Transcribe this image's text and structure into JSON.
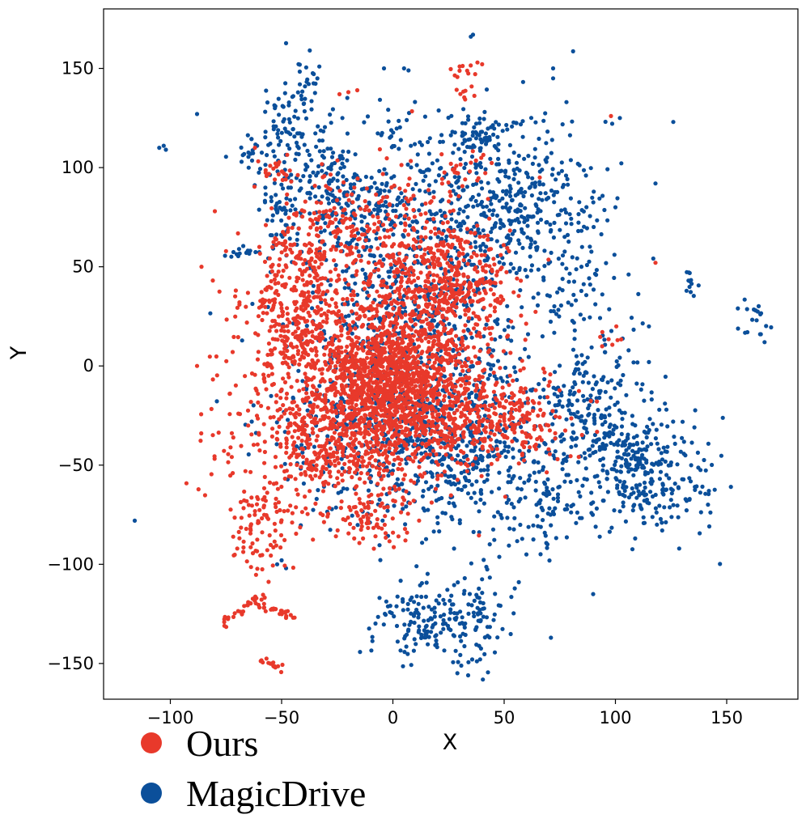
{
  "colors": {
    "ours": "#e8392b",
    "magicdrive": "#0b4f9a",
    "axis": "#000000"
  },
  "legend": {
    "items": [
      {
        "label": "Ours",
        "color": "#e8392b"
      },
      {
        "label": "MagicDrive",
        "color": "#0b4f9a"
      }
    ]
  },
  "chart_data": {
    "type": "scatter",
    "title": "",
    "xlabel": "X",
    "ylabel": "Y",
    "xlim": [
      -130,
      182
    ],
    "ylim": [
      -168,
      180
    ],
    "xticks": [
      -100,
      -50,
      0,
      50,
      100,
      150
    ],
    "yticks": [
      -150,
      -100,
      -50,
      0,
      50,
      100,
      150
    ],
    "xtick_labels": [
      "−100",
      "−50",
      "0",
      "50",
      "100",
      "150"
    ],
    "ytick_labels": [
      "−150",
      "−100",
      "−50",
      "0",
      "50",
      "100",
      "150"
    ],
    "grid": false,
    "legend_position": "bottom-left, below plot",
    "series": [
      {
        "name": "Ours",
        "color": "#e8392b",
        "clusters": [
          {
            "center": [
              -2,
              -8
            ],
            "spread": [
              20,
              22
            ],
            "n": 1300
          },
          {
            "center": [
              28,
              38
            ],
            "spread": [
              14,
              16
            ],
            "n": 350
          },
          {
            "center": [
              -40,
              32
            ],
            "spread": [
              10,
              24
            ],
            "n": 350
          },
          {
            "center": [
              -35,
              -40
            ],
            "spread": [
              14,
              18
            ],
            "n": 300
          },
          {
            "center": [
              48,
              -25
            ],
            "spread": [
              15,
              12
            ],
            "n": 280
          },
          {
            "center": [
              10,
              55
            ],
            "spread": [
              15,
              18
            ],
            "n": 220
          },
          {
            "center": [
              -60,
              -80
            ],
            "spread": [
              6,
              14
            ],
            "n": 90
          },
          {
            "center": [
              -55,
              20
            ],
            "spread": [
              10,
              25
            ],
            "n": 120
          },
          {
            "center": [
              -20,
              70
            ],
            "spread": [
              12,
              14
            ],
            "n": 100
          },
          {
            "center": [
              -8,
              -75
            ],
            "spread": [
              10,
              10
            ],
            "n": 90
          },
          {
            "center": [
              33,
              145
            ],
            "spread": [
              3,
              5
            ],
            "n": 18
          },
          {
            "center": [
              32,
              100
            ],
            "spread": [
              6,
              6
            ],
            "n": 25
          },
          {
            "center": [
              -52,
              98
            ],
            "spread": [
              4,
              4
            ],
            "n": 20
          },
          {
            "center": [
              100,
              12
            ],
            "spread": [
              3,
              3
            ],
            "n": 8
          },
          {
            "center": [
              -78,
              -30
            ],
            "spread": [
              6,
              20
            ],
            "n": 30
          }
        ],
        "arcs": [
          {
            "from": [
              -77,
              -131
            ],
            "to": [
              -64,
              -118
            ],
            "n": 18
          },
          {
            "from": [
              -64,
              -118
            ],
            "to": [
              -45,
              -127
            ],
            "n": 30
          },
          {
            "from": [
              -58,
              -148
            ],
            "to": [
              -50,
              -153
            ],
            "n": 15
          }
        ],
        "points": [
          [
            -88,
            0
          ],
          [
            -80,
            78
          ],
          [
            -86,
            50
          ],
          [
            -20,
            138
          ],
          [
            -16,
            139
          ],
          [
            -24,
            137
          ],
          [
            98,
            126
          ],
          [
            118,
            52
          ],
          [
            -72,
            7
          ],
          [
            -60,
            60
          ],
          [
            -62,
            110
          ],
          [
            66,
            95
          ],
          [
            70,
            -42
          ],
          [
            74,
            -47
          ],
          [
            -48,
            -127
          ],
          [
            38,
            153
          ],
          [
            30,
            151
          ]
        ]
      },
      {
        "name": "MagicDrive",
        "color": "#0b4f9a",
        "clusters": [
          {
            "center": [
              15,
              30
            ],
            "spread": [
              28,
              38
            ],
            "n": 750
          },
          {
            "center": [
              30,
              -40
            ],
            "spread": [
              22,
              18
            ],
            "n": 450
          },
          {
            "center": [
              90,
              -20
            ],
            "spread": [
              12,
              16
            ],
            "n": 200
          },
          {
            "center": [
              112,
              -55
            ],
            "spread": [
              15,
              15
            ],
            "n": 300
          },
          {
            "center": [
              55,
              85
            ],
            "spread": [
              18,
              20
            ],
            "n": 300
          },
          {
            "center": [
              40,
              115
            ],
            "spread": [
              10,
              6
            ],
            "n": 80
          },
          {
            "center": [
              15,
              -128
            ],
            "spread": [
              10,
              10
            ],
            "n": 140
          },
          {
            "center": [
              38,
              -130
            ],
            "spread": [
              6,
              12
            ],
            "n": 80
          },
          {
            "center": [
              -15,
              80
            ],
            "spread": [
              15,
              12
            ],
            "n": 160
          },
          {
            "center": [
              -50,
              120
            ],
            "spread": [
              8,
              10
            ],
            "n": 70
          },
          {
            "center": [
              -38,
              145
            ],
            "spread": [
              4,
              8
            ],
            "n": 25
          },
          {
            "center": [
              -52,
              75
            ],
            "spread": [
              4,
              10
            ],
            "n": 40
          },
          {
            "center": [
              70,
              -75
            ],
            "spread": [
              10,
              12
            ],
            "n": 70
          },
          {
            "center": [
              -15,
              -30
            ],
            "spread": [
              20,
              25
            ],
            "n": 250
          },
          {
            "center": [
              -30,
              100
            ],
            "spread": [
              10,
              12
            ],
            "n": 90
          },
          {
            "center": [
              -66,
              57
            ],
            "spread": [
              4,
              2
            ],
            "n": 15
          },
          {
            "center": [
              134,
              42
            ],
            "spread": [
              2,
              4
            ],
            "n": 12
          },
          {
            "center": [
              160,
              24
            ],
            "spread": [
              5,
              4
            ],
            "n": 16
          },
          {
            "center": [
              -62,
              105
            ],
            "spread": [
              3,
              5
            ],
            "n": 15
          },
          {
            "center": [
              0,
              118
            ],
            "spread": [
              4,
              4
            ],
            "n": 15
          },
          {
            "center": [
              85,
              50
            ],
            "spread": [
              10,
              20
            ],
            "n": 80
          }
        ],
        "arcs": [],
        "points": [
          [
            -116,
            -78
          ],
          [
            -105,
            110
          ],
          [
            -103,
            111
          ],
          [
            -102,
            109
          ],
          [
            -88,
            127
          ],
          [
            35,
            166
          ],
          [
            36,
            167
          ],
          [
            5,
            150
          ],
          [
            7,
            149
          ],
          [
            -4,
            150
          ],
          [
            72,
            150
          ],
          [
            72,
            145
          ],
          [
            78,
            133
          ],
          [
            102,
            125
          ],
          [
            126,
            123
          ],
          [
            118,
            92
          ],
          [
            -52,
            -100
          ],
          [
            -50,
            -98
          ],
          [
            -48,
            -102
          ],
          [
            142,
            -63
          ],
          [
            132,
            -68
          ],
          [
            155,
            29
          ],
          [
            167,
            12
          ],
          [
            165,
            16
          ],
          [
            60,
            -95
          ],
          [
            71,
            -137
          ],
          [
            90,
            -115
          ],
          [
            100,
            80
          ]
        ]
      }
    ]
  }
}
